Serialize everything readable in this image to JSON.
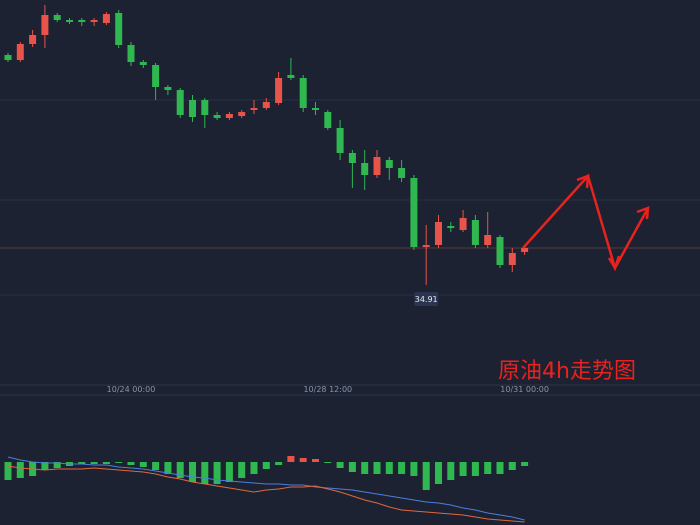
{
  "chart_data": [
    {
      "type": "candlestick",
      "title": "原油4h走势图",
      "annotation": "34.91",
      "up_color": "#e8534a",
      "down_color": "#2fb84f",
      "categories": [
        null,
        null,
        null,
        null,
        null,
        null,
        null,
        null,
        null,
        null,
        "10/24 00:00",
        null,
        null,
        null,
        null,
        null,
        null,
        null,
        null,
        null,
        null,
        null,
        null,
        null,
        null,
        null,
        "10/28 12:00",
        null,
        null,
        null,
        null,
        null,
        null,
        null,
        null,
        null,
        null,
        null,
        null,
        null,
        null,
        null,
        "10/31 00:00"
      ],
      "open": [
        37.21,
        37.16,
        37.32,
        37.41,
        37.61,
        37.56,
        37.56,
        37.54,
        37.53,
        37.63,
        37.31,
        37.14,
        37.11,
        36.89,
        36.86,
        36.76,
        36.76,
        36.61,
        36.58,
        36.6,
        36.66,
        36.68,
        36.73,
        37.01,
        36.98,
        36.68,
        36.64,
        36.48,
        36.23,
        36.13,
        36.01,
        36.16,
        36.08,
        35.98,
        35.29,
        35.31,
        35.5,
        35.46,
        35.56,
        35.31,
        35.39,
        35.11,
        35.24
      ],
      "high": [
        37.23,
        37.34,
        37.46,
        37.71,
        37.63,
        37.58,
        37.58,
        37.58,
        37.64,
        37.66,
        37.34,
        37.16,
        37.13,
        36.91,
        36.88,
        36.81,
        36.78,
        36.64,
        36.64,
        36.66,
        36.76,
        36.78,
        37.04,
        37.18,
        37.01,
        36.74,
        36.66,
        36.56,
        36.26,
        36.26,
        36.26,
        36.19,
        36.16,
        36.01,
        35.51,
        35.61,
        35.54,
        35.66,
        35.61,
        35.64,
        35.41,
        35.28,
        35.31
      ],
      "low": [
        37.14,
        37.14,
        37.29,
        37.28,
        37.54,
        37.52,
        37.5,
        37.5,
        37.51,
        37.28,
        37.1,
        37.08,
        36.76,
        36.81,
        36.58,
        36.54,
        36.48,
        36.56,
        36.56,
        36.58,
        36.62,
        36.66,
        36.71,
        36.96,
        36.64,
        36.61,
        36.46,
        36.16,
        35.88,
        35.86,
        35.98,
        35.96,
        35.94,
        35.26,
        34.91,
        35.28,
        35.44,
        35.44,
        35.28,
        35.28,
        35.08,
        35.04,
        35.21
      ],
      "close": [
        37.16,
        37.32,
        37.41,
        37.61,
        37.56,
        37.54,
        37.54,
        37.56,
        37.62,
        37.31,
        37.14,
        37.11,
        36.89,
        36.86,
        36.61,
        36.59,
        36.61,
        36.58,
        36.62,
        36.64,
        36.68,
        36.74,
        36.98,
        36.98,
        36.68,
        36.66,
        36.48,
        36.23,
        36.13,
        36.01,
        36.19,
        36.08,
        35.98,
        35.29,
        35.31,
        35.54,
        35.48,
        35.58,
        35.31,
        35.41,
        35.11,
        35.23,
        35.28
      ],
      "ylim": [
        33.91,
        37.76
      ]
    },
    {
      "type": "macd",
      "up_color": "#e8534a",
      "down_color": "#2fb84f",
      "histogram": [
        -0.18,
        -0.16,
        -0.14,
        -0.08,
        -0.06,
        -0.04,
        -0.02,
        -0.02,
        -0.02,
        -0.01,
        -0.03,
        -0.05,
        -0.08,
        -0.12,
        -0.16,
        -0.2,
        -0.22,
        -0.22,
        -0.2,
        -0.16,
        -0.12,
        -0.07,
        -0.03,
        0.06,
        0.04,
        0.03,
        -0.01,
        -0.06,
        -0.1,
        -0.12,
        -0.12,
        -0.12,
        -0.12,
        -0.14,
        -0.28,
        -0.22,
        -0.18,
        -0.14,
        -0.14,
        -0.12,
        -0.12,
        -0.08,
        -0.04
      ],
      "series": [
        {
          "color": "#4a7fe0",
          "values": [
            0.05,
            0.02,
            0,
            -0.01,
            -0.01,
            -0.02,
            -0.02,
            -0.03,
            -0.03,
            -0.05,
            -0.06,
            -0.07,
            -0.09,
            -0.11,
            -0.13,
            -0.15,
            -0.16,
            -0.18,
            -0.19,
            -0.2,
            -0.21,
            -0.22,
            -0.22,
            -0.23,
            -0.23,
            -0.25,
            -0.26,
            -0.27,
            -0.28,
            -0.3,
            -0.32,
            -0.34,
            -0.36,
            -0.38,
            -0.4,
            -0.41,
            -0.43,
            -0.46,
            -0.48,
            -0.51,
            -0.53,
            -0.55,
            -0.58
          ]
        },
        {
          "color": "#e0683a",
          "values": [
            -0.04,
            -0.06,
            -0.07,
            -0.08,
            -0.07,
            -0.07,
            -0.07,
            -0.06,
            -0.07,
            -0.08,
            -0.09,
            -0.1,
            -0.12,
            -0.15,
            -0.17,
            -0.2,
            -0.22,
            -0.24,
            -0.26,
            -0.28,
            -0.3,
            -0.28,
            -0.27,
            -0.25,
            -0.25,
            -0.24,
            -0.27,
            -0.3,
            -0.34,
            -0.38,
            -0.41,
            -0.45,
            -0.48,
            -0.49,
            -0.5,
            -0.51,
            -0.52,
            -0.53,
            -0.55,
            -0.57,
            -0.58,
            -0.59,
            -0.6
          ]
        }
      ],
      "ylim": [
        -0.63,
        0.67
      ]
    }
  ]
}
